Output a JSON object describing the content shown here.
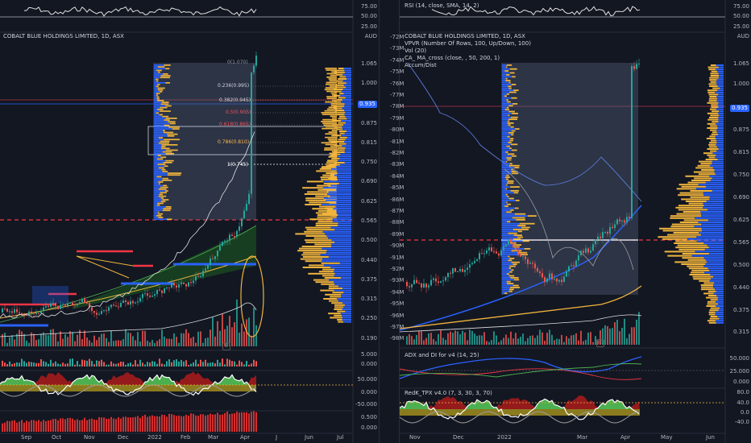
{
  "left": {
    "symbol_line": "COBALT BLUE HOLDINGS LIMITED, 1D, ASX",
    "currency": "AUD",
    "rsi_axis": [
      "75.00",
      "50.00",
      "25.00"
    ],
    "price_axis": [
      "1.065",
      "1.000",
      "0.935",
      "0.875",
      "0.815",
      "0.750",
      "0.690",
      "0.625",
      "0.565",
      "0.500",
      "0.440",
      "0.375",
      "0.315",
      "0.250",
      "0.190"
    ],
    "current_price": "0.935",
    "vol_axis": [
      "5.000",
      "0.000"
    ],
    "tpx_axis": [
      "50.000",
      "0.000",
      "-50.000"
    ],
    "accum_axis": [
      "0.500",
      "0.000"
    ],
    "fib_levels": [
      {
        "label": "0(1.070)",
        "color": "#9598a1"
      },
      {
        "label": "0.236(0.995)",
        "color": "#d1d4dc"
      },
      {
        "label": "0.382(0.945)",
        "color": "#d1d4dc"
      },
      {
        "label": "0.5(0.905)",
        "color": "#f7525f"
      },
      {
        "label": "0.618(0.865)",
        "color": "#f7525f"
      },
      {
        "label": "0.786(0.810)",
        "color": "#ffb74d"
      },
      {
        "label": "1(0.745)",
        "color": "#ffffff"
      }
    ],
    "time_labels": [
      "Sep",
      "Oct",
      "Nov",
      "Dec",
      "2022",
      "Feb",
      "Mar",
      "Apr",
      "J",
      "Jun",
      "Jul"
    ],
    "earnings_badge": "E"
  },
  "right": {
    "symbol_line": "COBALT BLUE HOLDINGS LIMITED, 1D, ASX",
    "legend": [
      "VPVR (Number Of Rows, 100, Up/Down, 100)",
      "Vol (20)",
      "CA_ MA_cross (close, , 50, 200, 1)",
      "Accum/Dist"
    ],
    "rsi_label": "RSI (14, close, SMA, 14, 2)",
    "rsi_axis": [
      "75.00",
      "50.00",
      "25.00"
    ],
    "currency": "AUD",
    "price_axis": [
      "1.065",
      "1.000",
      "0.935",
      "0.875",
      "0.815",
      "0.750",
      "0.690",
      "0.625",
      "0.565",
      "0.500",
      "0.440",
      "0.375",
      "0.315"
    ],
    "current_price": "0.935",
    "accum_axis": [
      "-72M",
      "-73M",
      "-74M",
      "-75M",
      "-76M",
      "-77M",
      "-78M",
      "-79M",
      "-80M",
      "-81M",
      "-82M",
      "-83M",
      "-84M",
      "-85M",
      "-86M",
      "-87M",
      "-88M",
      "-89M",
      "-90M",
      "-91M",
      "-92M",
      "-93M",
      "-94M",
      "-95M",
      "-96M",
      "-97M",
      "-98M"
    ],
    "adx_label": "ADX and DI for v4 (14, 25)",
    "adx_axis": [
      "50.000",
      "25.000",
      "0.000"
    ],
    "tpx_label": "RedK_TPX v4.0 (7, 3, 30, 3, 70)",
    "tpx_axis": [
      "80.0",
      "40.0",
      "0.0",
      "-40.0"
    ],
    "time_labels": [
      "Nov",
      "Dec",
      "2022",
      "Mar",
      "Apr",
      "May",
      "Jun"
    ],
    "earnings_badge": "E"
  },
  "colors": {
    "background": "#131722",
    "up": "#26a69a",
    "down": "#ef5350",
    "vp_up": "#2962ff",
    "vp_down": "#f0b43c",
    "price_tag": "#2962ff",
    "dashed_red": "#f23645"
  }
}
